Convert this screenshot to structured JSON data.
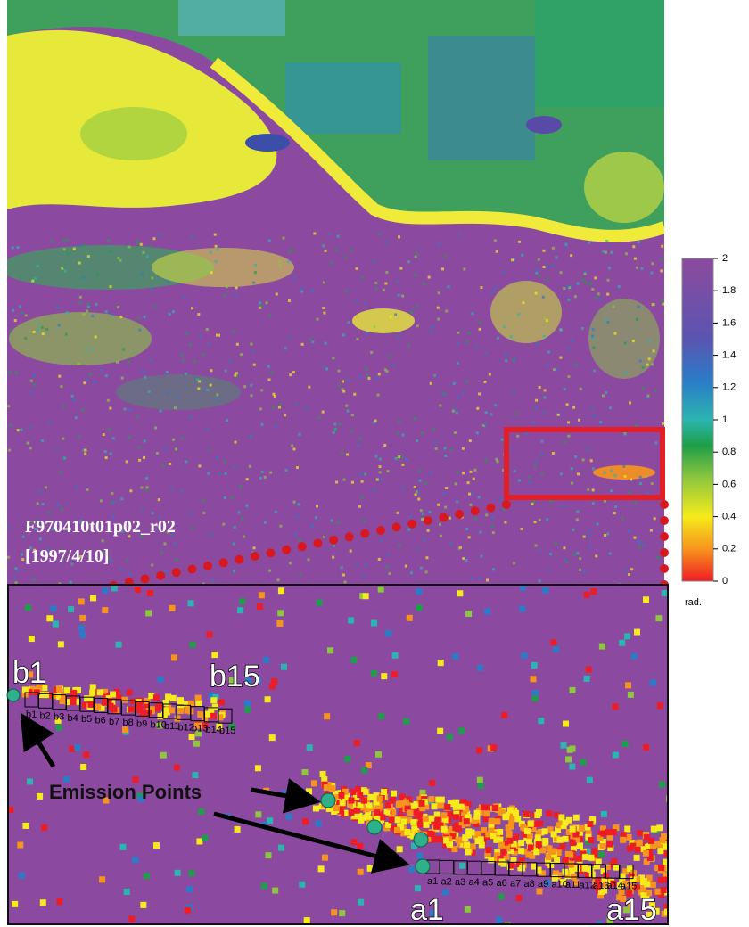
{
  "image_label": {
    "scene_id": "F970410t01p02_r02",
    "date": "[1997/4/10]"
  },
  "colorbar": {
    "ylim": [
      0,
      2
    ],
    "yticks": [
      0,
      0.2,
      0.4,
      0.6,
      0.8,
      1,
      1.2,
      1.4,
      1.6,
      1.8,
      2
    ],
    "unit": "rad."
  },
  "inset": {
    "b_start": "b1",
    "b_end": "b15",
    "a_start": "a1",
    "a_end": "a15",
    "callout": "Emission Points",
    "b_boxes": [
      "b1",
      "b2",
      "b3",
      "b4",
      "b5",
      "b6",
      "b7",
      "b8",
      "b9",
      "b10",
      "b11",
      "b12",
      "b13",
      "b14",
      "b15"
    ],
    "a_boxes": [
      "a1",
      "a2",
      "a3",
      "a4",
      "a5",
      "a6",
      "a7",
      "a8",
      "a9",
      "a10",
      "a11",
      "a12",
      "a13",
      "a14",
      "a15"
    ]
  }
}
